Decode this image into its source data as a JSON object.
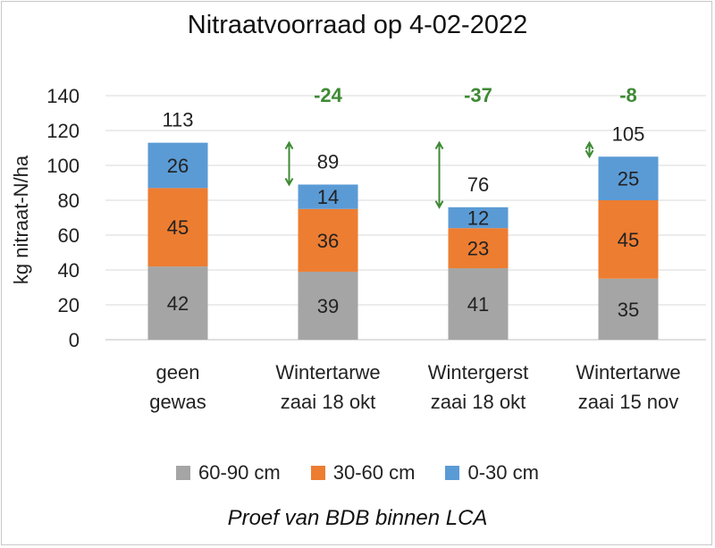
{
  "chart_data": {
    "type": "bar",
    "stacked": true,
    "title": "Nitraatvoorraad op 4-02-2022",
    "subtitle": "Proef van BDB binnen LCA",
    "ylabel": "kg nitraat-N/ha",
    "xlabel": "",
    "ylim": [
      0,
      140
    ],
    "yticks": [
      "0",
      "20",
      "40",
      "60",
      "80",
      "100",
      "120",
      "140"
    ],
    "grid": true,
    "legend_position": "bottom",
    "categories": [
      [
        "geen",
        "gewas"
      ],
      [
        "Wintertarwe",
        "zaai 18 okt"
      ],
      [
        "Wintergerst",
        "zaai 18 okt"
      ],
      [
        "Wintertarwe",
        "zaai 15 nov"
      ]
    ],
    "series": [
      {
        "name": "60-90 cm",
        "color": "#a5a5a5",
        "values": [
          42,
          39,
          41,
          35
        ]
      },
      {
        "name": "30-60 cm",
        "color": "#ed7d31",
        "values": [
          45,
          36,
          23,
          45
        ]
      },
      {
        "name": "0-30 cm",
        "color": "#5b9bd5",
        "values": [
          26,
          14,
          12,
          25
        ]
      }
    ],
    "totals": [
      113,
      89,
      76,
      105
    ],
    "differences": [
      "",
      "-24",
      "-37",
      "-8"
    ],
    "difference_color": "#3e8a34",
    "arrow_color": "#3e8a34"
  }
}
